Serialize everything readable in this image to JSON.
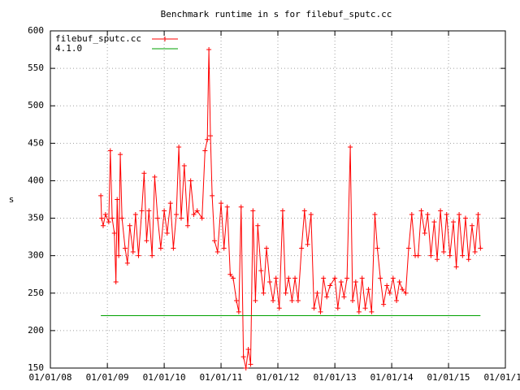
{
  "chart_data": {
    "type": "line",
    "title": "Benchmark runtime in s for filebuf_sputc.cc",
    "y_label": "s",
    "legend": "top-left",
    "grid": true,
    "xlim": [
      "2008-01-01",
      "2016-01-01"
    ],
    "xticks": [
      {
        "value": "2008-01-01",
        "label": "01/01/08"
      },
      {
        "value": "2009-01-01",
        "label": "01/01/09"
      },
      {
        "value": "2010-01-01",
        "label": "01/01/10"
      },
      {
        "value": "2011-01-01",
        "label": "01/01/11"
      },
      {
        "value": "2012-01-01",
        "label": "01/01/12"
      },
      {
        "value": "2013-01-01",
        "label": "01/01/13"
      },
      {
        "value": "2014-01-01",
        "label": "01/01/14"
      },
      {
        "value": "2015-01-01",
        "label": "01/01/15"
      },
      {
        "value": "2016-01-01",
        "label": "01/01/16"
      }
    ],
    "ylim": [
      150,
      600
    ],
    "yticks": [
      150,
      200,
      250,
      300,
      350,
      400,
      450,
      500,
      550,
      600
    ],
    "series": [
      {
        "name": "filebuf_sputc.cc",
        "color": "#ff0000",
        "marker": "+",
        "x": [
          "2008-11-20",
          "2008-11-25",
          "2008-12-05",
          "2008-12-20",
          "2009-01-10",
          "2009-01-20",
          "2009-02-01",
          "2009-02-15",
          "2009-02-25",
          "2009-03-05",
          "2009-03-15",
          "2009-03-25",
          "2009-04-05",
          "2009-04-25",
          "2009-05-10",
          "2009-05-25",
          "2009-06-15",
          "2009-07-01",
          "2009-07-20",
          "2009-08-10",
          "2009-08-25",
          "2009-09-10",
          "2009-09-25",
          "2009-10-15",
          "2009-11-01",
          "2009-11-20",
          "2009-12-10",
          "2010-01-01",
          "2010-01-20",
          "2010-02-10",
          "2010-03-01",
          "2010-03-20",
          "2010-04-05",
          "2010-04-20",
          "2010-05-10",
          "2010-06-01",
          "2010-06-20",
          "2010-07-10",
          "2010-08-01",
          "2010-09-01",
          "2010-09-20",
          "2010-10-05",
          "2010-10-15",
          "2010-10-25",
          "2010-11-05",
          "2010-11-20",
          "2010-12-10",
          "2011-01-01",
          "2011-01-20",
          "2011-02-10",
          "2011-03-01",
          "2011-03-20",
          "2011-04-10",
          "2011-04-25",
          "2011-05-10",
          "2011-05-25",
          "2011-06-10",
          "2011-06-25",
          "2011-07-10",
          "2011-07-25",
          "2011-08-10",
          "2011-08-25",
          "2011-09-15",
          "2011-10-01",
          "2011-10-20",
          "2011-11-10",
          "2011-12-01",
          "2011-12-20",
          "2012-01-10",
          "2012-02-01",
          "2012-02-20",
          "2012-03-10",
          "2012-04-01",
          "2012-04-20",
          "2012-05-10",
          "2012-06-01",
          "2012-06-20",
          "2012-07-10",
          "2012-08-01",
          "2012-08-20",
          "2012-09-10",
          "2012-10-01",
          "2012-10-20",
          "2012-11-10",
          "2012-12-01",
          "2013-01-01",
          "2013-01-20",
          "2013-02-10",
          "2013-03-01",
          "2013-03-20",
          "2013-04-10",
          "2013-04-25",
          "2013-05-15",
          "2013-06-05",
          "2013-06-25",
          "2013-07-15",
          "2013-08-05",
          "2013-08-25",
          "2013-09-15",
          "2013-10-01",
          "2013-10-20",
          "2013-11-10",
          "2013-12-01",
          "2013-12-20",
          "2014-01-10",
          "2014-02-01",
          "2014-02-20",
          "2014-03-10",
          "2014-04-01",
          "2014-04-20",
          "2014-05-10",
          "2014-06-01",
          "2014-06-20",
          "2014-07-10",
          "2014-08-01",
          "2014-08-20",
          "2014-09-10",
          "2014-10-01",
          "2014-10-20",
          "2014-11-10",
          "2014-12-01",
          "2014-12-20",
          "2015-01-10",
          "2015-02-01",
          "2015-02-20",
          "2015-03-10",
          "2015-04-01",
          "2015-04-20",
          "2015-05-10",
          "2015-06-01",
          "2015-06-20",
          "2015-07-10",
          "2015-07-25"
        ],
        "values": [
          380,
          350,
          340,
          355,
          345,
          440,
          350,
          330,
          265,
          375,
          300,
          435,
          350,
          310,
          290,
          340,
          305,
          355,
          300,
          360,
          410,
          320,
          360,
          300,
          405,
          350,
          310,
          360,
          330,
          370,
          310,
          355,
          445,
          350,
          420,
          340,
          400,
          355,
          360,
          350,
          440,
          455,
          575,
          460,
          380,
          320,
          305,
          370,
          310,
          365,
          275,
          270,
          240,
          225,
          365,
          165,
          150,
          175,
          155,
          360,
          240,
          340,
          280,
          250,
          310,
          265,
          240,
          270,
          230,
          360,
          250,
          270,
          240,
          270,
          240,
          310,
          360,
          315,
          355,
          230,
          250,
          225,
          270,
          245,
          260,
          270,
          230,
          265,
          245,
          270,
          445,
          240,
          265,
          225,
          270,
          230,
          255,
          225,
          355,
          310,
          270,
          235,
          260,
          250,
          270,
          240,
          265,
          255,
          250,
          310,
          355,
          300,
          300,
          360,
          330,
          355,
          300,
          345,
          295,
          360,
          305,
          355,
          300,
          345,
          285,
          355,
          300,
          350,
          295,
          340,
          305,
          355,
          310
        ]
      },
      {
        "name": "4.1.0",
        "color": "#00a000",
        "x": [
          "2008-11-20",
          "2015-07-25"
        ],
        "values": [
          220,
          220
        ]
      }
    ]
  }
}
